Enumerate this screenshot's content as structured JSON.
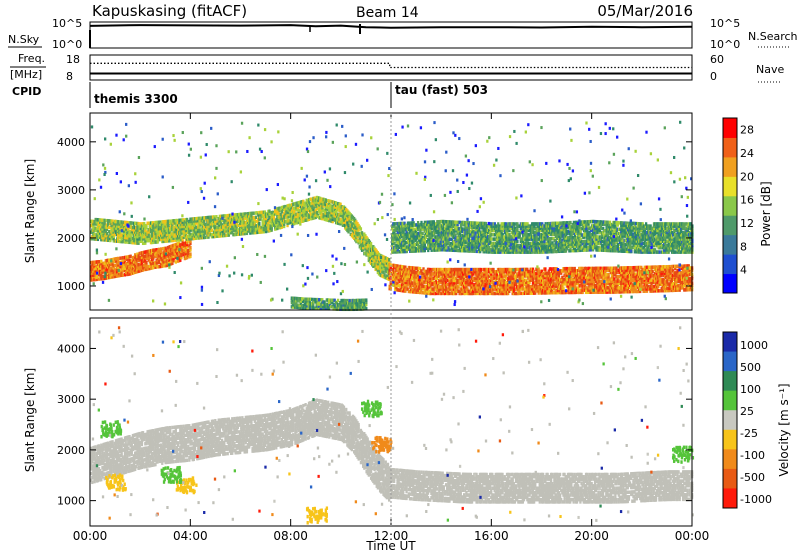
{
  "header": {
    "station": "Kapuskasing (fitACF)",
    "beam": "Beam 14",
    "date": "05/Mar/2016"
  },
  "panel_labels": {
    "nsky": "N.Sky",
    "nsearch": "N.Search",
    "freq_line1": "Freq.",
    "freq_line2": "[MHz]",
    "nave": "Nave",
    "cpid": "CPID"
  },
  "cpid_programs": [
    {
      "label": "themis 3300",
      "start": 0.0,
      "end": 11.95
    },
    {
      "label": "tau (fast) 503",
      "start": 11.95,
      "end": 24.0
    }
  ],
  "colors": {
    "power_scale": [
      "#1a1aff",
      "#2a5cc8",
      "#2f8a6a",
      "#5aa35a",
      "#a8d23a",
      "#f2c21a",
      "#f08a1a",
      "#e84a14",
      "#ff1a0a"
    ],
    "velocity_scale": [
      "#1a2aa8",
      "#2a66c8",
      "#2f8a55",
      "#55c43a",
      "#c8c8c0",
      "#f7c41a",
      "#f08a1a",
      "#e85a14",
      "#ff1a0a"
    ],
    "ground_scatter": "#c0c0b8"
  },
  "chart_data": [
    {
      "type": "line",
      "name": "noise",
      "ylabel_left": "N.Sky",
      "ylabel_right": "N.Search",
      "yticks_left": [
        "10^5",
        "10^0"
      ],
      "yticks_right": [
        "10^5",
        "10^0"
      ],
      "series": [
        {
          "name": "N.Sky",
          "x": [
            0,
            2,
            4,
            6,
            8,
            9,
            10,
            11,
            12,
            14,
            16,
            18,
            20,
            22,
            24
          ],
          "y": [
            0.85,
            0.88,
            0.87,
            0.86,
            0.88,
            0.84,
            0.86,
            0.8,
            0.78,
            0.8,
            0.8,
            0.79,
            0.82,
            0.8,
            0.82
          ]
        },
        {
          "name": "N.Search",
          "x": [
            0,
            24
          ],
          "y": [
            0.9,
            0.9
          ]
        }
      ]
    },
    {
      "type": "line",
      "name": "freq_nave",
      "ylabel_left": "Freq. [MHz]",
      "ylabel_right": "Nave",
      "yticks_left": [
        "18",
        "8"
      ],
      "yticks_right": [
        "60",
        "0"
      ],
      "series": [
        {
          "name": "Freq.",
          "x": [
            0,
            24
          ],
          "y": [
            10.6,
            10.6
          ]
        },
        {
          "name": "Nave",
          "x": [
            0,
            11.95,
            11.95,
            24
          ],
          "y": [
            40,
            40,
            30,
            30
          ]
        }
      ]
    },
    {
      "type": "heatmap",
      "name": "power",
      "title": "",
      "xlabel": "",
      "ylabel": "Slant Range [km]",
      "xlim": [
        0,
        24
      ],
      "ylim": [
        500,
        4600
      ],
      "yticks": [
        1000,
        2000,
        3000,
        4000
      ],
      "colorbar_label": "Power [dB]",
      "colorbar_ticks": [
        4,
        8,
        12,
        16,
        20,
        24,
        28
      ],
      "colorbar_range": [
        0,
        30
      ],
      "bands": [
        {
          "x": [
            0.0,
            0.5,
            1.0,
            1.5,
            2.0,
            2.5,
            3.0,
            3.5,
            4.0
          ],
          "y": [
            1300,
            1330,
            1380,
            1420,
            1500,
            1560,
            1600,
            1700,
            1800
          ],
          "width": 180,
          "level": 24
        },
        {
          "x": [
            0.0,
            1.0,
            2.0,
            3.0,
            4.0,
            5.0,
            6.0,
            7.0,
            8.0,
            9.0,
            10.0,
            10.5,
            11.0,
            11.5,
            11.9
          ],
          "y": [
            2200,
            2150,
            2100,
            2150,
            2200,
            2250,
            2300,
            2350,
            2500,
            2650,
            2500,
            2200,
            1800,
            1450,
            1350
          ],
          "width": 220,
          "level": 14
        },
        {
          "x": [
            11.9,
            12.5,
            13.5,
            15.0,
            17.0,
            19.0,
            21.0,
            23.0,
            24.0
          ],
          "y": [
            1200,
            1150,
            1100,
            1100,
            1100,
            1120,
            1130,
            1160,
            1180
          ],
          "width": 260,
          "level": 24
        },
        {
          "x": [
            12.0,
            14.0,
            16.0,
            18.0,
            20.0,
            22.0,
            24.0
          ],
          "y": [
            2000,
            2050,
            2000,
            2000,
            2050,
            2000,
            2000
          ],
          "width": 300,
          "level": 10
        },
        {
          "x": [
            8.0,
            8.5,
            9.0,
            9.5,
            10.0,
            10.5,
            11.0
          ],
          "y": [
            650,
            630,
            620,
            610,
            600,
            600,
            610
          ],
          "width": 90,
          "level": 10
        }
      ]
    },
    {
      "type": "heatmap",
      "name": "velocity",
      "title": "",
      "xlabel": "Time UT",
      "ylabel": "Slant Range [km]",
      "xlim": [
        0,
        24
      ],
      "ylim": [
        500,
        4600
      ],
      "xticks": [
        "00:00",
        "04:00",
        "08:00",
        "12:00",
        "16:00",
        "20:00",
        "00:00"
      ],
      "yticks": [
        1000,
        2000,
        3000,
        4000
      ],
      "colorbar_label": "Velocity [m s⁻¹]",
      "colorbar_ticks": [
        "1000",
        "500",
        "100",
        "25",
        "-25",
        "-100",
        "-500",
        "-1000"
      ],
      "ground_scatter_bands": [
        {
          "x": [
            0.0,
            1.0,
            2.0,
            3.0,
            4.0,
            5.0,
            6.0,
            7.0,
            8.0,
            9.0,
            10.0,
            10.5,
            11.0,
            11.5,
            11.9
          ],
          "y": [
            1700,
            1850,
            2000,
            2100,
            2150,
            2250,
            2300,
            2350,
            2450,
            2650,
            2550,
            2300,
            1900,
            1550,
            1350
          ],
          "width": 350
        },
        {
          "x": [
            11.9,
            13.0,
            15.0,
            17.0,
            19.0,
            21.0,
            23.0,
            24.0
          ],
          "y": [
            1350,
            1300,
            1250,
            1250,
            1250,
            1250,
            1300,
            1300
          ],
          "width": 280
        }
      ],
      "velocity_patches": [
        {
          "x": 1.0,
          "y": 1350,
          "level": "-100"
        },
        {
          "x": 3.8,
          "y": 1300,
          "level": "-100"
        },
        {
          "x": 3.2,
          "y": 1500,
          "level": "100"
        },
        {
          "x": 0.8,
          "y": 2400,
          "level": "100"
        },
        {
          "x": 11.2,
          "y": 2800,
          "level": "100"
        },
        {
          "x": 11.6,
          "y": 2100,
          "level": "-500"
        },
        {
          "x": 9.0,
          "y": 700,
          "level": "-100"
        },
        {
          "x": 23.6,
          "y": 1900,
          "level": "100"
        }
      ]
    }
  ]
}
